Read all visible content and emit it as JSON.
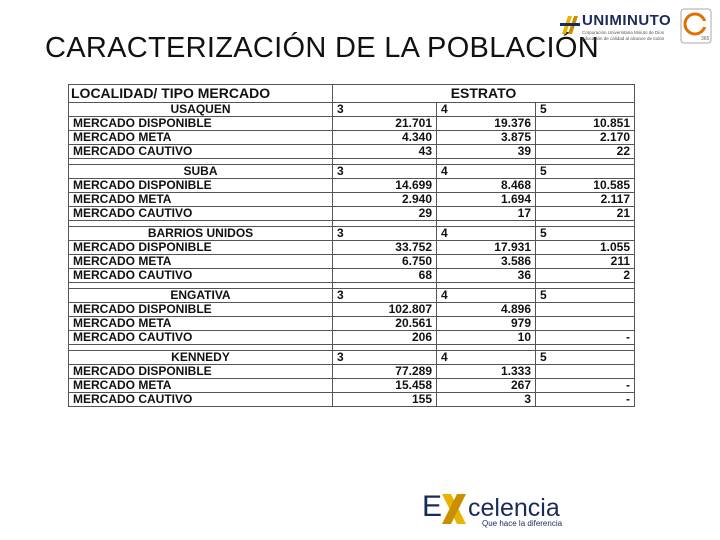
{
  "slide": {
    "title": "CARACTERIZACIÓN DE LA POBLACIÓN"
  },
  "logos": {
    "uniminuto": {
      "brand": "UNIMINUTO",
      "line1": "Corporación Universitaria Minuto de Dios",
      "line2": "educación de calidad al alcance de todos"
    },
    "excelencia": {
      "word": "celencia",
      "tagline": "Que hace la diferencia"
    }
  },
  "table": {
    "header_left": "LOCALIDAD/ TIPO MERCADO",
    "header_right": "ESTRATO",
    "groups": [
      {
        "name": "USAQUEN",
        "estratos": [
          "3",
          "4",
          "5"
        ],
        "rows": [
          {
            "label": "MERCADO DISPONIBLE",
            "v": [
              "21.701",
              "19.376",
              "10.851"
            ]
          },
          {
            "label": "MERCADO META",
            "v": [
              "4.340",
              "3.875",
              "2.170"
            ]
          },
          {
            "label": "MERCADO CAUTIVO",
            "v": [
              "43",
              "39",
              "22"
            ]
          }
        ]
      },
      {
        "name": "SUBA",
        "estratos": [
          "3",
          "4",
          "5"
        ],
        "rows": [
          {
            "label": "MERCADO DISPONIBLE",
            "v": [
              "14.699",
              "8.468",
              "10.585"
            ]
          },
          {
            "label": "MERCADO META",
            "v": [
              "2.940",
              "1.694",
              "2.117"
            ]
          },
          {
            "label": "MERCADO CAUTIVO",
            "v": [
              "29",
              "17",
              "21"
            ]
          }
        ]
      },
      {
        "name": "BARRIOS UNIDOS",
        "estratos": [
          "3",
          "4",
          "5"
        ],
        "rows": [
          {
            "label": "MERCADO DISPONIBLE",
            "v": [
              "33.752",
              "17.931",
              "1.055"
            ]
          },
          {
            "label": "MERCADO META",
            "v": [
              "6.750",
              "3.586",
              "211"
            ]
          },
          {
            "label": "MERCADO CAUTIVO",
            "v": [
              "68",
              "36",
              "2"
            ]
          }
        ]
      },
      {
        "name": "ENGATIVA",
        "estratos": [
          "3",
          "4",
          "5"
        ],
        "rows": [
          {
            "label": "MERCADO DISPONIBLE",
            "v": [
              "102.807",
              "4.896",
              ""
            ]
          },
          {
            "label": "MERCADO META",
            "v": [
              "20.561",
              "979",
              ""
            ]
          },
          {
            "label": "MERCADO CAUTIVO",
            "v": [
              "206",
              "10",
              "-"
            ]
          }
        ]
      },
      {
        "name": "KENNEDY",
        "estratos": [
          "3",
          "4",
          "5"
        ],
        "rows": [
          {
            "label": "MERCADO DISPONIBLE",
            "v": [
              "77.289",
              "1.333",
              ""
            ]
          },
          {
            "label": "MERCADO META",
            "v": [
              "15.458",
              "267",
              "-"
            ]
          },
          {
            "label": "MERCADO CAUTIVO",
            "v": [
              "155",
              "3",
              "-"
            ]
          }
        ]
      }
    ]
  }
}
